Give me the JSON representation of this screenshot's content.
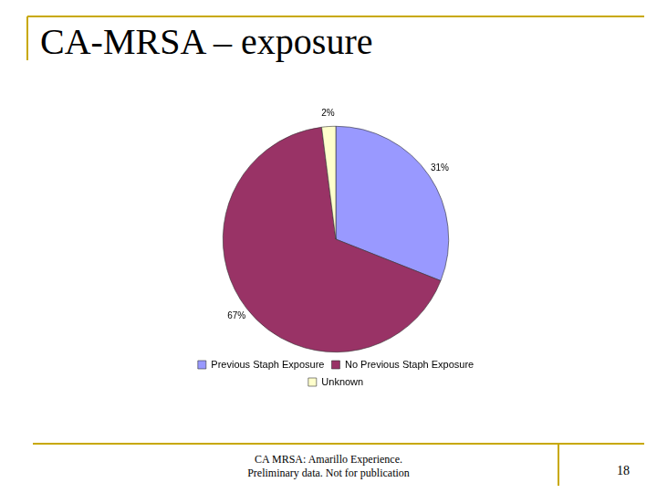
{
  "chart_data": {
    "type": "pie",
    "title": "CA-MRSA – exposure",
    "categories": [
      "Previous Staph Exposure",
      "No Previous Staph Exposure",
      "Unknown"
    ],
    "values": [
      31,
      67,
      2
    ],
    "value_labels": [
      "31%",
      "67%",
      "2%"
    ],
    "colors": [
      "#9999ff",
      "#993366",
      "#ffffcc"
    ],
    "data_labels": true,
    "legend": "bottom"
  },
  "slide": {
    "footer": [
      "CA MRSA: Amarillo Experience.",
      "Preliminary data. Not for publication"
    ],
    "page_number": "18"
  }
}
